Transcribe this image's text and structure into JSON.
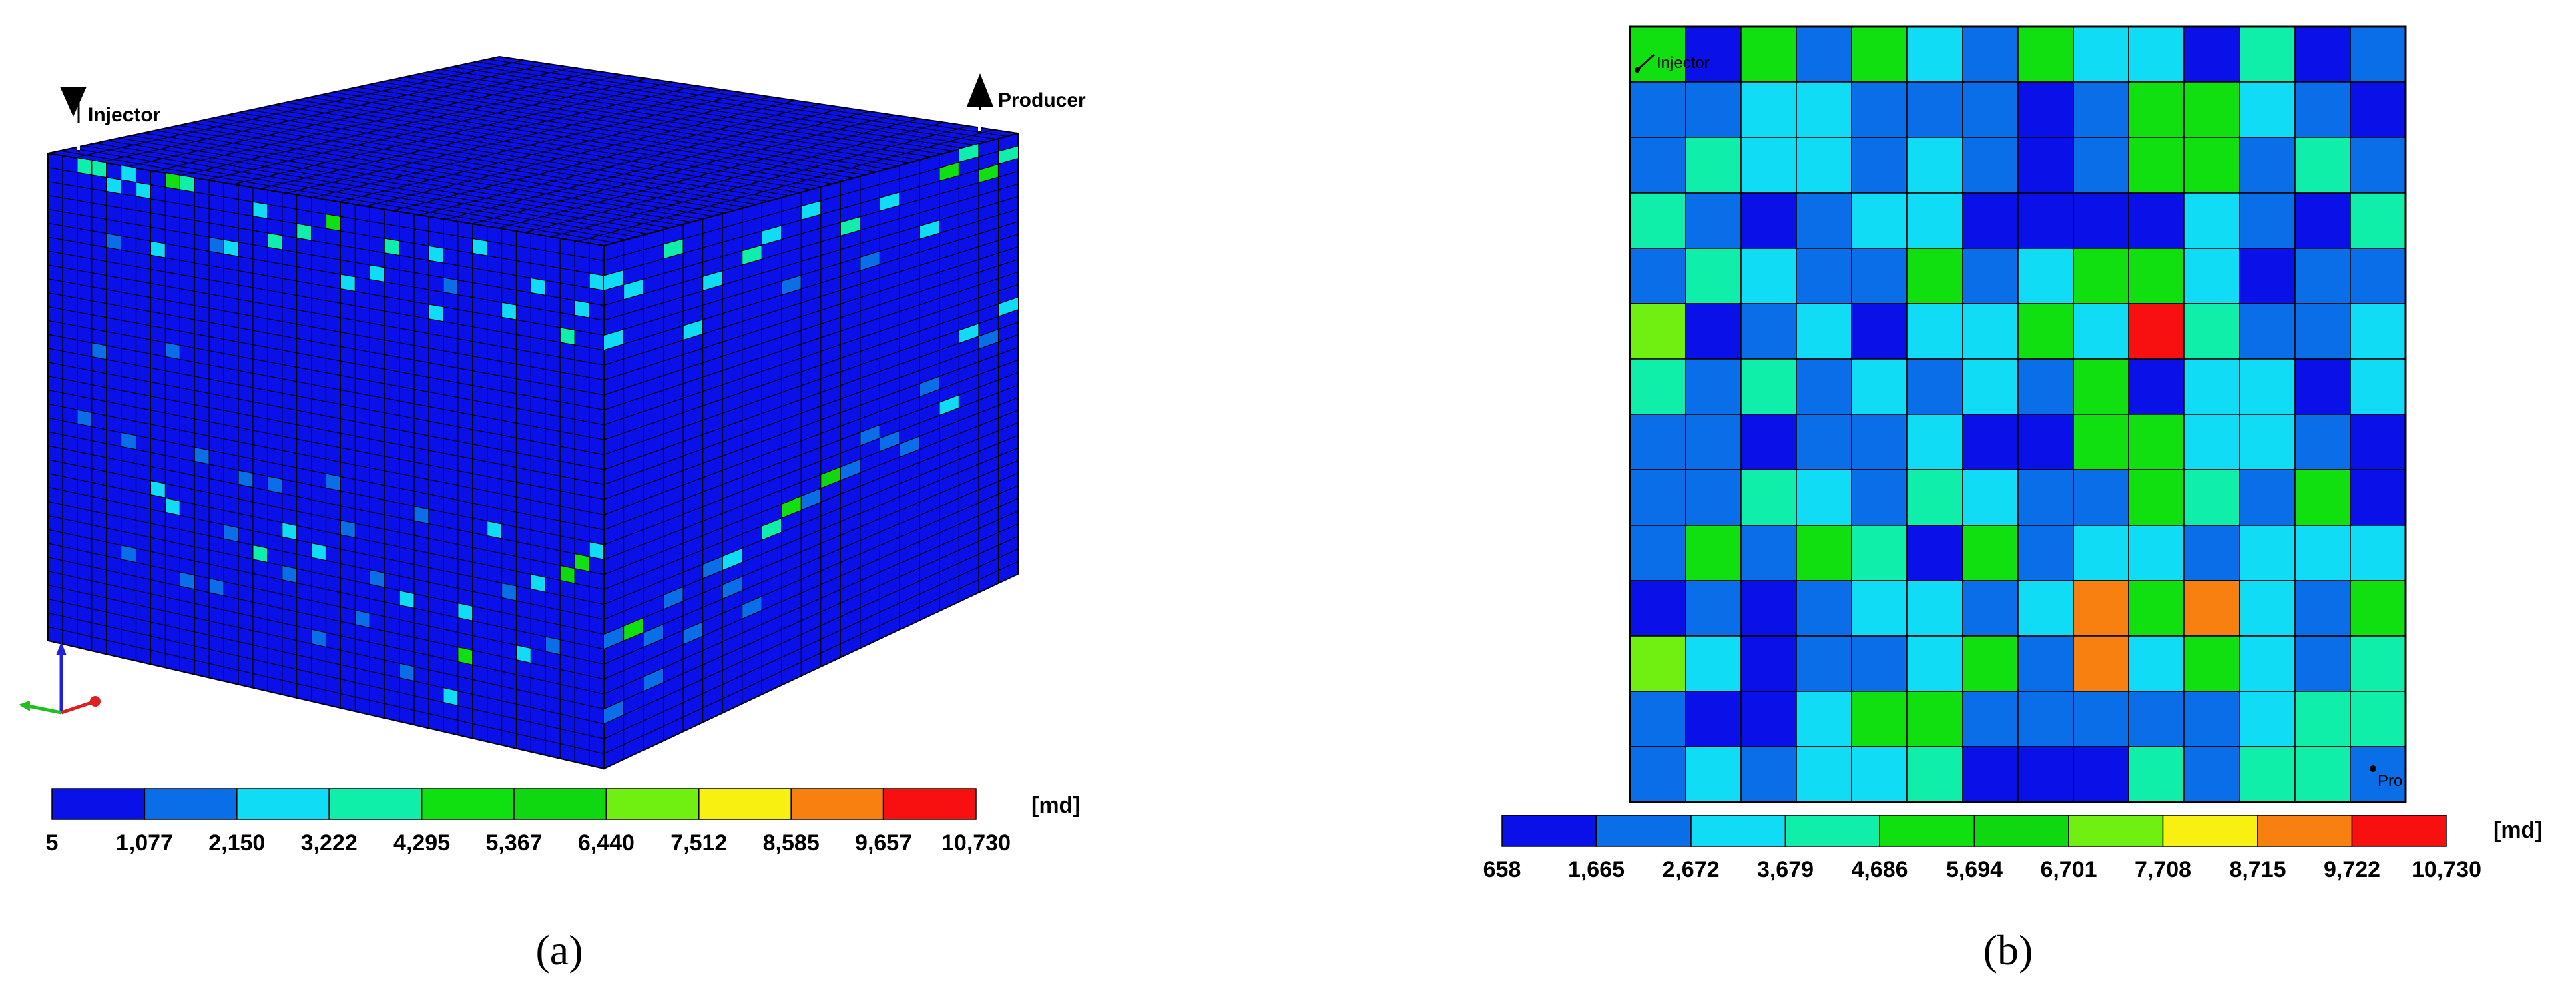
{
  "colors": {
    "scale": [
      "#0a10e8",
      "#0a6ee8",
      "#10dcf5",
      "#10efaa",
      "#10e010",
      "#10d810",
      "#70f010",
      "#f8f010",
      "#f88010",
      "#f81010"
    ],
    "base_blue": "#0a10e8",
    "grid_line": "#000000"
  },
  "panel_a": {
    "caption": "(a)",
    "wells": {
      "injector": "Injector",
      "producer": "Producer"
    },
    "axes_triad": {
      "x_color": "#e02020",
      "y_color": "#20c020",
      "z_color": "#2020e0"
    },
    "colorbar": {
      "unit": "[md]",
      "ticks": [
        "5",
        "1,077",
        "2,150",
        "3,222",
        "4,295",
        "5,367",
        "6,440",
        "7,512",
        "8,585",
        "9,657",
        "10,730"
      ]
    },
    "front_face_nonbase": [
      [
        2,
        0,
        3
      ],
      [
        3,
        0,
        3
      ],
      [
        4,
        1,
        2
      ],
      [
        5,
        0,
        2
      ],
      [
        6,
        1,
        2
      ],
      [
        8,
        0,
        4
      ],
      [
        9,
        0,
        3
      ],
      [
        12,
        4,
        2
      ],
      [
        14,
        1,
        2
      ],
      [
        15,
        3,
        3
      ],
      [
        17,
        2,
        3
      ],
      [
        19,
        1,
        4
      ],
      [
        22,
        4,
        2
      ],
      [
        23,
        2,
        3
      ],
      [
        26,
        2,
        2
      ],
      [
        27,
        4,
        1
      ],
      [
        29,
        1,
        2
      ],
      [
        31,
        5,
        2
      ],
      [
        33,
        3,
        2
      ],
      [
        35,
        6,
        3
      ],
      [
        36,
        4,
        2
      ],
      [
        37,
        2,
        2
      ],
      [
        4,
        5,
        1
      ],
      [
        7,
        5,
        2
      ],
      [
        11,
        4,
        1
      ],
      [
        20,
        5,
        2
      ],
      [
        26,
        6,
        2
      ],
      [
        8,
        12,
        1
      ],
      [
        3,
        13,
        1
      ],
      [
        2,
        18,
        1
      ],
      [
        5,
        19,
        1
      ],
      [
        10,
        19,
        1
      ],
      [
        13,
        20,
        1
      ],
      [
        15,
        20,
        1
      ],
      [
        19,
        19,
        1
      ],
      [
        7,
        22,
        2
      ],
      [
        8,
        23,
        2
      ],
      [
        12,
        24,
        1
      ],
      [
        14,
        25,
        3
      ],
      [
        16,
        26,
        1
      ],
      [
        18,
        24,
        2
      ],
      [
        22,
        25,
        1
      ],
      [
        24,
        26,
        2
      ],
      [
        28,
        26,
        2
      ],
      [
        31,
        24,
        1
      ],
      [
        33,
        23,
        2
      ],
      [
        35,
        22,
        5
      ],
      [
        36,
        21,
        4
      ],
      [
        37,
        20,
        2
      ],
      [
        30,
        20,
        2
      ],
      [
        5,
        27,
        1
      ],
      [
        9,
        28,
        1
      ],
      [
        21,
        28,
        1
      ],
      [
        28,
        29,
        4
      ],
      [
        32,
        28,
        2
      ],
      [
        34,
        27,
        1
      ],
      [
        11,
        28,
        1
      ],
      [
        18,
        30,
        1
      ],
      [
        24,
        31,
        1
      ],
      [
        27,
        32,
        2
      ],
      [
        16,
        23,
        2
      ],
      [
        25,
        20,
        1
      ],
      [
        20,
        22,
        1
      ]
    ],
    "side_face_nonbase": [
      [
        0,
        2,
        2
      ],
      [
        1,
        3,
        2
      ],
      [
        3,
        1,
        3
      ],
      [
        5,
        4,
        2
      ],
      [
        7,
        3,
        3
      ],
      [
        8,
        2,
        2
      ],
      [
        10,
        1,
        2
      ],
      [
        12,
        3,
        3
      ],
      [
        14,
        2,
        2
      ],
      [
        16,
        5,
        2
      ],
      [
        17,
        1,
        4
      ],
      [
        18,
        0,
        3
      ],
      [
        19,
        2,
        4
      ],
      [
        20,
        1,
        3
      ],
      [
        0,
        6,
        2
      ],
      [
        4,
        7,
        2
      ],
      [
        9,
        6,
        1
      ],
      [
        13,
        6,
        1
      ],
      [
        18,
        14,
        2
      ],
      [
        20,
        13,
        2
      ],
      [
        19,
        15,
        1
      ],
      [
        16,
        17,
        1
      ],
      [
        17,
        19,
        2
      ],
      [
        15,
        21,
        1
      ],
      [
        12,
        21,
        1
      ],
      [
        14,
        20,
        1
      ],
      [
        11,
        21,
        5
      ],
      [
        9,
        22,
        4
      ],
      [
        10,
        22,
        1
      ],
      [
        8,
        23,
        3
      ],
      [
        6,
        24,
        2
      ],
      [
        5,
        24,
        1
      ],
      [
        3,
        25,
        1
      ],
      [
        1,
        26,
        4
      ],
      [
        2,
        27,
        1
      ],
      [
        0,
        26,
        1
      ],
      [
        4,
        28,
        1
      ],
      [
        7,
        28,
        1
      ],
      [
        2,
        30,
        1
      ],
      [
        0,
        31,
        1
      ],
      [
        6,
        26,
        1
      ],
      [
        13,
        19,
        1
      ]
    ]
  },
  "panel_b": {
    "caption": "(b)",
    "wells": {
      "injector": "Injector",
      "producer": "Pro"
    },
    "colorbar": {
      "unit": "[md]",
      "ticks": [
        "658",
        "1,665",
        "2,672",
        "3,679",
        "4,686",
        "5,694",
        "6,701",
        "7,708",
        "8,715",
        "9,722",
        "10,730"
      ]
    },
    "grid": [
      [
        4,
        0,
        4,
        1,
        4,
        2,
        1,
        4,
        2,
        2,
        0,
        3,
        0,
        1
      ],
      [
        1,
        1,
        2,
        2,
        1,
        1,
        1,
        0,
        1,
        4,
        4,
        2,
        1,
        0
      ],
      [
        1,
        3,
        2,
        2,
        1,
        2,
        1,
        0,
        1,
        4,
        4,
        1,
        3,
        1
      ],
      [
        3,
        1,
        0,
        1,
        2,
        2,
        0,
        0,
        0,
        0,
        2,
        1,
        0,
        3
      ],
      [
        1,
        3,
        2,
        1,
        1,
        4,
        1,
        2,
        4,
        4,
        2,
        0,
        1,
        1
      ],
      [
        6,
        0,
        1,
        2,
        0,
        2,
        2,
        4,
        2,
        9,
        3,
        1,
        1,
        2
      ],
      [
        3,
        1,
        3,
        1,
        2,
        1,
        2,
        1,
        4,
        0,
        2,
        2,
        0,
        2
      ],
      [
        1,
        1,
        0,
        1,
        1,
        2,
        0,
        0,
        4,
        4,
        2,
        2,
        1,
        0
      ],
      [
        1,
        1,
        3,
        2,
        1,
        3,
        2,
        1,
        1,
        4,
        3,
        1,
        4,
        0
      ],
      [
        1,
        4,
        1,
        4,
        3,
        0,
        4,
        1,
        2,
        2,
        1,
        2,
        2,
        2
      ],
      [
        0,
        1,
        0,
        1,
        2,
        2,
        1,
        2,
        8,
        4,
        8,
        2,
        1,
        4
      ],
      [
        6,
        2,
        0,
        1,
        1,
        2,
        4,
        1,
        8,
        2,
        4,
        2,
        1,
        3
      ],
      [
        1,
        0,
        0,
        2,
        4,
        4,
        1,
        1,
        1,
        1,
        1,
        2,
        3,
        3
      ],
      [
        1,
        2,
        1,
        2,
        2,
        3,
        0,
        0,
        0,
        3,
        1,
        3,
        3,
        1
      ]
    ]
  }
}
